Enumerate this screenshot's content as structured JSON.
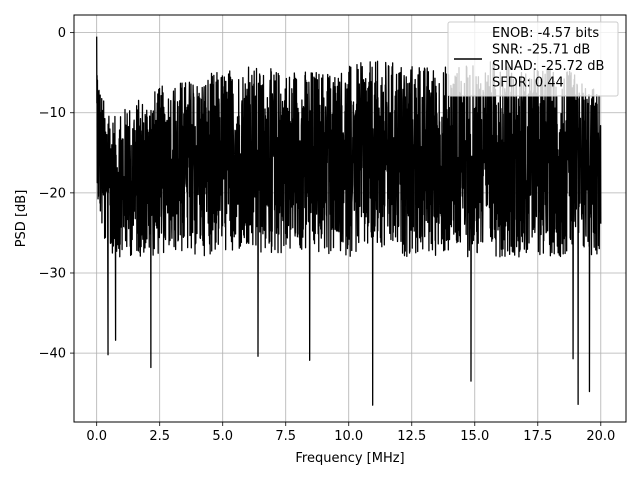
{
  "chart_data": {
    "type": "line",
    "title": "",
    "xlabel": "Frequency [MHz]",
    "ylabel": "PSD [dB]",
    "xlim": [
      -0.9,
      21.0
    ],
    "ylim": [
      -48.6,
      2.2
    ],
    "xticks": [
      0.0,
      2.5,
      5.0,
      7.5,
      10.0,
      12.5,
      15.0,
      17.5,
      20.0
    ],
    "xtick_labels": [
      "0.0",
      "2.5",
      "5.0",
      "7.5",
      "10.0",
      "12.5",
      "15.0",
      "17.5",
      "20.0"
    ],
    "yticks": [
      0,
      -10,
      -20,
      -30,
      -40
    ],
    "ytick_labels": [
      "0",
      "−10",
      "−20",
      "−30",
      "−40"
    ],
    "grid": true,
    "legend_position": "top-right",
    "series_color": "#000000",
    "series": [
      {
        "legend_lines": [
          "ENOB: -4.57 bits",
          "SNR: -25.71 dB",
          "SINAD: -25.72 dB",
          "SFDR: 0.44"
        ],
        "x_range": [
          0.0,
          20.0
        ],
        "notes_visible": "noise-like spectrum between roughly -5 and -28 dB",
        "envelope": {
          "x": [
            0.0,
            0.05,
            0.15,
            0.3,
            0.45,
            0.7,
            1.0,
            2.0,
            3.0,
            4.0,
            5.0,
            6.0,
            7.0,
            8.0,
            9.0,
            10.0,
            11.0,
            12.0,
            13.0,
            14.0,
            15.0,
            16.0,
            17.0,
            18.0,
            19.0,
            20.0
          ],
          "upper": [
            -0.5,
            -3.5,
            -6.8,
            -8.5,
            -9.5,
            -10.5,
            -9.5,
            -7.5,
            -6.0,
            -5.5,
            -4.5,
            -4.0,
            -4.5,
            -4.5,
            -4.5,
            -4.0,
            -3.5,
            -3.5,
            -4.0,
            -4.0,
            -4.0,
            -3.0,
            -4.5,
            -4.0,
            -5.0,
            -7.5
          ],
          "lower": [
            -16.0,
            -22.0,
            -24.0,
            -27.0,
            -28.0,
            -28.0,
            -28.0,
            -28.0,
            -27.5,
            -28.0,
            -27.5,
            -28.0,
            -28.0,
            -27.5,
            -28.0,
            -28.0,
            -27.5,
            -28.0,
            -28.0,
            -28.0,
            -28.0,
            -28.0,
            -28.0,
            -28.0,
            -28.0,
            -28.0
          ]
        },
        "notable_dips": [
          {
            "x": 0.45,
            "y": -40.2
          },
          {
            "x": 0.75,
            "y": -38.4
          },
          {
            "x": 2.15,
            "y": -41.8
          },
          {
            "x": 6.4,
            "y": -40.4
          },
          {
            "x": 8.45,
            "y": -40.9
          },
          {
            "x": 10.95,
            "y": -46.5
          },
          {
            "x": 14.85,
            "y": -43.5
          },
          {
            "x": 19.1,
            "y": -46.4
          },
          {
            "x": 19.55,
            "y": -44.8
          },
          {
            "x": 18.9,
            "y": -40.7
          }
        ]
      }
    ]
  }
}
